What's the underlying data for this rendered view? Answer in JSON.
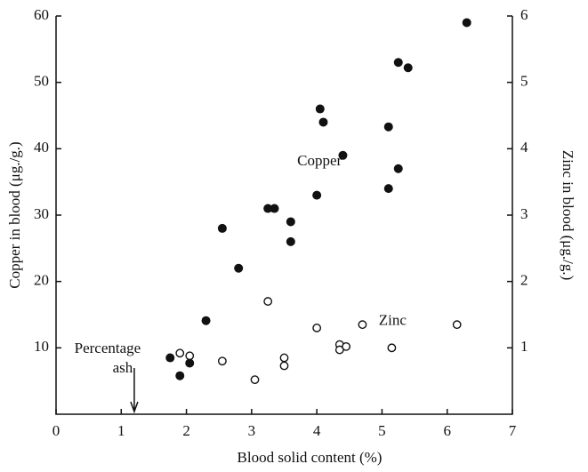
{
  "chart_data": {
    "type": "scatter",
    "x_label": "Blood solid content (%)",
    "y_label": "Copper in blood (μg./g.)",
    "y2_label": "Zinc in blood (μg./g.)",
    "xlim": [
      0,
      7
    ],
    "xticks": [
      0,
      1,
      2,
      3,
      4,
      5,
      6,
      7
    ],
    "ylim": [
      0,
      60
    ],
    "yticks": [
      10,
      20,
      30,
      40,
      50,
      60
    ],
    "y2lim": [
      0,
      6
    ],
    "y2ticks": [
      1,
      2,
      3,
      4,
      5,
      6
    ],
    "series": [
      {
        "name": "Copper",
        "color": "#111111",
        "marker": "filled",
        "axis": "y",
        "label_at": [
          3.7,
          38
        ],
        "x": [
          1.75,
          1.9,
          2.05,
          2.3,
          2.55,
          2.8,
          3.25,
          3.35,
          3.6,
          3.6,
          4.0,
          4.05,
          4.1,
          4.4,
          5.1,
          5.1,
          5.25,
          5.25,
          5.4,
          6.3
        ],
        "values": [
          8.5,
          5.8,
          7.7,
          14.1,
          28,
          22,
          31,
          31,
          29,
          26,
          33,
          46,
          44,
          39,
          43.3,
          34,
          37,
          53,
          52.2,
          59
        ]
      },
      {
        "name": "Zinc",
        "color": "#111111",
        "marker": "open",
        "axis": "y2",
        "label_at": [
          4.95,
          1.4
        ],
        "x": [
          1.9,
          2.05,
          2.55,
          3.05,
          3.25,
          3.5,
          3.5,
          4.0,
          4.35,
          4.35,
          4.45,
          4.7,
          5.15,
          6.15
        ],
        "values": [
          0.92,
          0.88,
          0.8,
          0.52,
          1.7,
          0.85,
          0.73,
          1.3,
          1.05,
          0.97,
          1.02,
          1.35,
          1.0,
          1.35
        ]
      }
    ],
    "annotation": {
      "lines": [
        "Percentage",
        "ash"
      ],
      "x": 1.2
    }
  }
}
